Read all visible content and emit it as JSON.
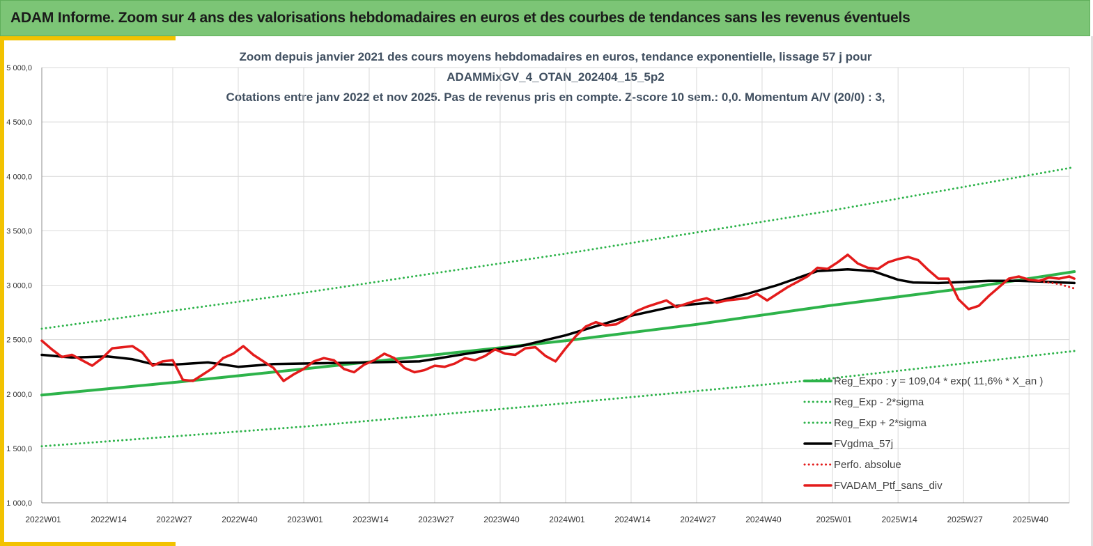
{
  "header": {
    "title": "ADAM Informe. Zoom sur 4 ans des valorisations hebdomadaires en euros et des courbes de tendances sans les revenus éventuels"
  },
  "chart_data": {
    "type": "line",
    "title_lines": [
      "Zoom depuis janvier 2021 des cours moyens hebdomadaires  en euros, tendance exponentielle, lissage 57 j pour",
      "ADAMMixGV_4_OTAN_202404_15_5p2",
      "Cotations entre janv 2022 et nov 2025. Pas de revenus pris en compte. Z-score 10 sem.: 0,0. Momentum A/V (20/0) : 3,"
    ],
    "x_axis": {
      "unit": "week",
      "start": "2022W01",
      "end": "2025W49",
      "num_weeks": 205,
      "tick_labels": [
        "2022W01",
        "2022W14",
        "2022W27",
        "2022W40",
        "2023W01",
        "2023W14",
        "2023W27",
        "2023W40",
        "2024W01",
        "2024W14",
        "2024W27",
        "2024W40",
        "2025W01",
        "2025W14",
        "2025W27",
        "2025W40"
      ],
      "tick_weeks": [
        0,
        13,
        26,
        39,
        52,
        65,
        78,
        91,
        104,
        117,
        130,
        143,
        157,
        170,
        183,
        196
      ]
    },
    "y_axis": {
      "min": 1000,
      "max": 5000,
      "ticks": [
        1000,
        1500,
        2000,
        2500,
        3000,
        3500,
        4000,
        4500,
        5000
      ],
      "tick_labels": [
        "1 000,0",
        "1 500,0",
        "2 000,0",
        "2 500,0",
        "3 000,0",
        "3 500,0",
        "4 000,0",
        "4 500,0",
        "5 000,0"
      ]
    },
    "grid": "horizontal-and-vertical",
    "legend_position": "bottom-right",
    "series": [
      {
        "name": "Reg_Expo : y = 109,04 * exp( 11,6% *  X_an )",
        "color": "#2db34a",
        "style": "solid",
        "width": 4,
        "points": [
          [
            0,
            1990
          ],
          [
            26,
            2105
          ],
          [
            52,
            2230
          ],
          [
            78,
            2360
          ],
          [
            104,
            2490
          ],
          [
            130,
            2640
          ],
          [
            156,
            2810
          ],
          [
            183,
            2970
          ],
          [
            205,
            3125
          ]
        ]
      },
      {
        "name": "Reg_Exp - 2*sigma",
        "color": "#2db34a",
        "style": "dotted",
        "width": 3,
        "points": [
          [
            0,
            1520
          ],
          [
            52,
            1700
          ],
          [
            104,
            1915
          ],
          [
            156,
            2140
          ],
          [
            205,
            2395
          ]
        ]
      },
      {
        "name": "Reg_Exp + 2*sigma",
        "color": "#2db34a",
        "style": "dotted",
        "width": 3,
        "points": [
          [
            0,
            2600
          ],
          [
            52,
            2930
          ],
          [
            104,
            3290
          ],
          [
            156,
            3680
          ],
          [
            205,
            4085
          ]
        ]
      },
      {
        "name": "FVgdma_57j",
        "color": "#000000",
        "style": "solid",
        "width": 3.5,
        "points": [
          [
            0,
            2360
          ],
          [
            6,
            2335
          ],
          [
            13,
            2345
          ],
          [
            18,
            2320
          ],
          [
            22,
            2275
          ],
          [
            26,
            2270
          ],
          [
            33,
            2290
          ],
          [
            39,
            2250
          ],
          [
            46,
            2275
          ],
          [
            52,
            2280
          ],
          [
            65,
            2290
          ],
          [
            75,
            2300
          ],
          [
            85,
            2375
          ],
          [
            95,
            2440
          ],
          [
            104,
            2540
          ],
          [
            117,
            2720
          ],
          [
            126,
            2810
          ],
          [
            133,
            2840
          ],
          [
            140,
            2920
          ],
          [
            146,
            3000
          ],
          [
            154,
            3130
          ],
          [
            160,
            3145
          ],
          [
            165,
            3130
          ],
          [
            170,
            3050
          ],
          [
            173,
            3025
          ],
          [
            178,
            3020
          ],
          [
            188,
            3040
          ],
          [
            194,
            3040
          ],
          [
            200,
            3030
          ],
          [
            205,
            3020
          ]
        ]
      },
      {
        "name": "Perfo. absolue",
        "color": "#e31b1b",
        "style": "dotted",
        "width": 3,
        "points": [
          [
            199,
            3030
          ],
          [
            202,
            3010
          ],
          [
            205,
            2970
          ]
        ]
      },
      {
        "name": "FVADAM_Ptf_sans_div",
        "color": "#e31b1b",
        "style": "solid",
        "width": 3.5,
        "points": [
          [
            0,
            2490
          ],
          [
            2,
            2410
          ],
          [
            4,
            2340
          ],
          [
            6,
            2360
          ],
          [
            8,
            2310
          ],
          [
            10,
            2260
          ],
          [
            12,
            2330
          ],
          [
            14,
            2420
          ],
          [
            16,
            2430
          ],
          [
            18,
            2440
          ],
          [
            20,
            2380
          ],
          [
            22,
            2260
          ],
          [
            24,
            2300
          ],
          [
            26,
            2310
          ],
          [
            28,
            2130
          ],
          [
            30,
            2120
          ],
          [
            32,
            2180
          ],
          [
            34,
            2240
          ],
          [
            36,
            2330
          ],
          [
            38,
            2370
          ],
          [
            40,
            2440
          ],
          [
            42,
            2360
          ],
          [
            44,
            2300
          ],
          [
            46,
            2240
          ],
          [
            48,
            2120
          ],
          [
            50,
            2180
          ],
          [
            52,
            2230
          ],
          [
            54,
            2300
          ],
          [
            56,
            2330
          ],
          [
            58,
            2310
          ],
          [
            60,
            2230
          ],
          [
            62,
            2200
          ],
          [
            64,
            2270
          ],
          [
            66,
            2310
          ],
          [
            68,
            2370
          ],
          [
            70,
            2330
          ],
          [
            72,
            2240
          ],
          [
            74,
            2200
          ],
          [
            76,
            2220
          ],
          [
            78,
            2260
          ],
          [
            80,
            2250
          ],
          [
            82,
            2280
          ],
          [
            84,
            2330
          ],
          [
            86,
            2310
          ],
          [
            88,
            2350
          ],
          [
            90,
            2410
          ],
          [
            92,
            2370
          ],
          [
            94,
            2360
          ],
          [
            96,
            2420
          ],
          [
            98,
            2430
          ],
          [
            100,
            2350
          ],
          [
            102,
            2300
          ],
          [
            104,
            2420
          ],
          [
            106,
            2530
          ],
          [
            108,
            2620
          ],
          [
            110,
            2660
          ],
          [
            112,
            2630
          ],
          [
            114,
            2640
          ],
          [
            116,
            2690
          ],
          [
            118,
            2760
          ],
          [
            120,
            2800
          ],
          [
            122,
            2830
          ],
          [
            124,
            2860
          ],
          [
            126,
            2800
          ],
          [
            128,
            2830
          ],
          [
            130,
            2860
          ],
          [
            132,
            2880
          ],
          [
            134,
            2840
          ],
          [
            136,
            2860
          ],
          [
            138,
            2870
          ],
          [
            140,
            2880
          ],
          [
            142,
            2920
          ],
          [
            144,
            2860
          ],
          [
            146,
            2920
          ],
          [
            148,
            2980
          ],
          [
            150,
            3030
          ],
          [
            152,
            3080
          ],
          [
            154,
            3160
          ],
          [
            156,
            3150
          ],
          [
            158,
            3210
          ],
          [
            160,
            3280
          ],
          [
            162,
            3200
          ],
          [
            164,
            3160
          ],
          [
            166,
            3150
          ],
          [
            168,
            3210
          ],
          [
            170,
            3240
          ],
          [
            172,
            3260
          ],
          [
            174,
            3230
          ],
          [
            176,
            3140
          ],
          [
            178,
            3060
          ],
          [
            180,
            3060
          ],
          [
            182,
            2870
          ],
          [
            184,
            2780
          ],
          [
            186,
            2810
          ],
          [
            188,
            2900
          ],
          [
            190,
            2980
          ],
          [
            192,
            3060
          ],
          [
            194,
            3080
          ],
          [
            196,
            3050
          ],
          [
            198,
            3040
          ],
          [
            200,
            3070
          ],
          [
            202,
            3060
          ],
          [
            204,
            3080
          ],
          [
            205,
            3060
          ]
        ]
      }
    ]
  }
}
